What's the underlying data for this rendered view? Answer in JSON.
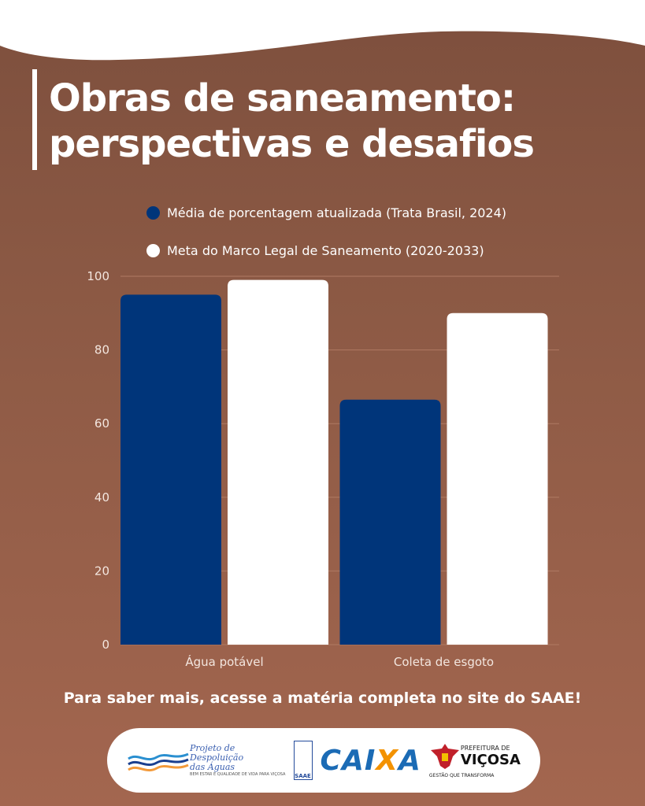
{
  "header": {
    "title_line1": "Obras de saneamento:",
    "title_line2": "perspectivas e desafios"
  },
  "colors": {
    "series_blue": "#00357a",
    "series_white": "#ffffff",
    "background": "#8d5a45"
  },
  "chart_data": {
    "type": "bar",
    "title": "",
    "xlabel": "",
    "ylabel": "",
    "categories": [
      "Água potável",
      "Coleta de esgoto"
    ],
    "series": [
      {
        "name": "Média de porcentagem atualizada (Trata Brasil, 2024)",
        "color": "#00357a",
        "values": [
          95,
          66.5
        ]
      },
      {
        "name": "Meta do Marco Legal de Saneamento (2020-2033)",
        "color": "#ffffff",
        "values": [
          99,
          90
        ]
      }
    ],
    "ylim": [
      0,
      100
    ],
    "yticks": [
      0,
      20,
      40,
      60,
      80,
      100
    ],
    "grid": true,
    "legend_position": "top"
  },
  "footer": {
    "cta": "Para saber mais, acesse a matéria completa no site do SAAE!",
    "logos": {
      "pda_line1": "Projeto de",
      "pda_line2": "Despoluição",
      "pda_line3": "das Águas",
      "pda_tagline": "BEM ESTAR E QUALIDADE DE VIDA PARA VIÇOSA",
      "saae": "SAAE",
      "caixa_main": "CAI",
      "caixa_x": "X",
      "caixa_end": "A",
      "vicosa_small": "PREFEITURA DE",
      "vicosa_big": "VIÇOSA",
      "vicosa_tag": "GESTÃO QUE TRANSFORMA"
    }
  }
}
